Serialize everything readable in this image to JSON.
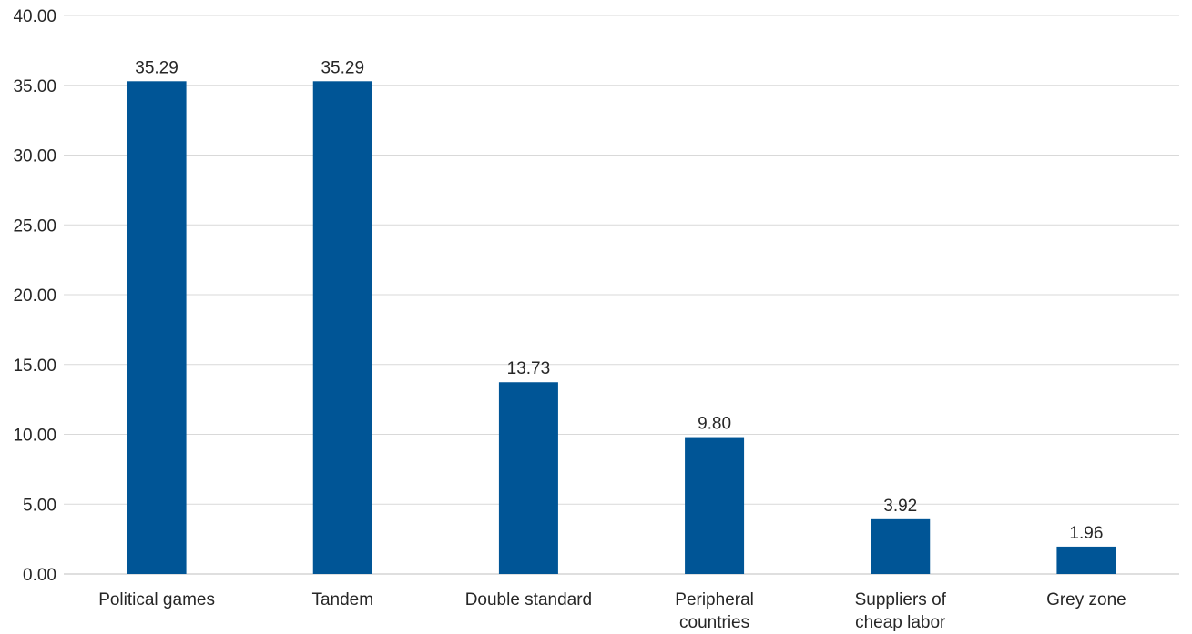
{
  "chart_data": {
    "type": "bar",
    "categories": [
      [
        "Political games"
      ],
      [
        "Tandem"
      ],
      [
        "Double standard"
      ],
      [
        "Peripheral",
        "countries"
      ],
      [
        "Suppliers of",
        "cheap labor"
      ],
      [
        "Grey zone"
      ]
    ],
    "values": [
      35.29,
      35.29,
      13.73,
      9.8,
      3.92,
      1.96
    ],
    "value_labels": [
      "35.29",
      "35.29",
      "13.73",
      "9.80",
      "3.92",
      "1.96"
    ],
    "ylim": [
      0,
      40
    ],
    "yticks": [
      "0.00",
      "5.00",
      "10.00",
      "15.00",
      "20.00",
      "25.00",
      "30.00",
      "35.00",
      "40.00"
    ],
    "ytick_step": 5,
    "grid": true,
    "bar_color": "#005596",
    "title": "",
    "xlabel": "",
    "ylabel": ""
  }
}
